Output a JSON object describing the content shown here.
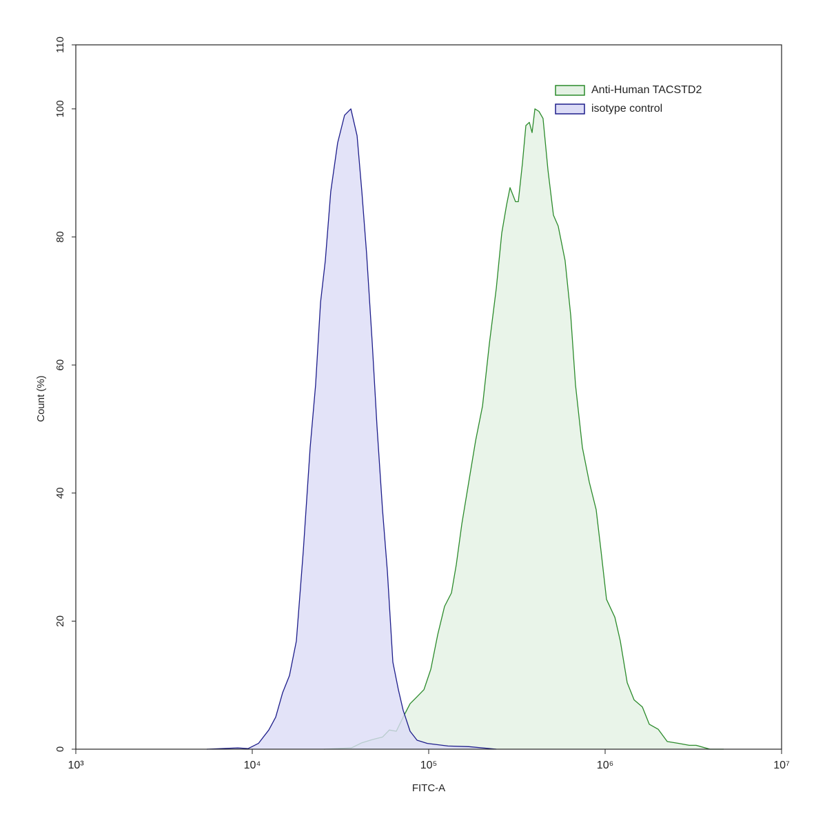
{
  "chart_data": {
    "type": "histogram-overlay",
    "x_label": "FITC-A",
    "y_label": "Count (%)",
    "xlog": true,
    "xlim": [
      1000,
      10000000
    ],
    "xticks": [
      {
        "value": 1000,
        "label": "10³"
      },
      {
        "value": 10000,
        "label": "10⁴"
      },
      {
        "value": 100000,
        "label": "10⁵"
      },
      {
        "value": 1000000,
        "label": "10⁶"
      },
      {
        "value": 10000000,
        "label": "10⁷"
      }
    ],
    "ylim": [
      0,
      110
    ],
    "yticks": [
      0,
      20,
      40,
      60,
      80,
      100,
      110
    ],
    "legend": "upper right",
    "series": [
      {
        "name": "Anti-Human TACSTD2",
        "color": "#2a8a2a",
        "fill": "#e4f1e4",
        "x": [
          25470,
          36520,
          41790,
          47860,
          54720,
          59840,
          65510,
          71620,
          78450,
          85900,
          93980,
          102800,
          112500,
          123000,
          134600,
          143300,
          154100,
          168700,
          184500,
          201800,
          220800,
          241600,
          259500,
          276300,
          289000,
          310500,
          322100,
          339700,
          355600,
          371700,
          385500,
          399900,
          421700,
          444600,
          474300,
          509300,
          542100,
          593200,
          638100,
          679300,
          743000,
          812900,
          889300,
          948400,
          1018000,
          1135000,
          1219000,
          1334000,
          1459000,
          1626000,
          1778000,
          2000000,
          2249000,
          2618000,
          2999000,
          3281000,
          3926000,
          4699000
        ],
        "values": [
          0,
          0.2,
          1.0,
          1.5,
          1.9,
          3.0,
          2.8,
          5.0,
          7.1,
          8.2,
          9.3,
          12.5,
          17.9,
          22.3,
          24.4,
          28.8,
          35.2,
          41.7,
          48.2,
          53.6,
          63.4,
          72.0,
          80.6,
          85.0,
          87.7,
          85.5,
          85.5,
          91.5,
          97.4,
          97.9,
          96.3,
          100,
          99.6,
          98.5,
          90.4,
          83.4,
          81.7,
          76.3,
          67.7,
          56.9,
          47.1,
          41.7,
          37.4,
          30.9,
          23.4,
          20.6,
          16.9,
          10.4,
          7.7,
          6.6,
          3.9,
          3.1,
          1.2,
          0.9,
          0.6,
          0.6,
          0,
          0
        ]
      },
      {
        "name": "isotype control",
        "color": "#1c1c8a",
        "fill": "#dcdcf6",
        "x": [
          5521,
          8279,
          9480,
          10840,
          12410,
          13580,
          14850,
          16250,
          17780,
          19450,
          21280,
          22860,
          24380,
          25940,
          27860,
          30480,
          33350,
          36220,
          39260,
          41790,
          44460,
          47860,
          50930,
          54720,
          58340,
          62650,
          67300,
          71620,
          78450,
          85900,
          98200,
          128600,
          168700,
          201800,
          241600
        ],
        "values": [
          0,
          0.2,
          0.1,
          0.9,
          3.0,
          5.0,
          8.8,
          11.5,
          16.9,
          30.9,
          47.1,
          56.9,
          69.8,
          76.3,
          87.1,
          94.7,
          99.0,
          100,
          95.8,
          87.1,
          77.4,
          63.4,
          50.4,
          37.4,
          27.7,
          13.6,
          9.3,
          6.1,
          2.8,
          1.4,
          0.9,
          0.5,
          0.4,
          0.2,
          0
        ]
      }
    ]
  }
}
